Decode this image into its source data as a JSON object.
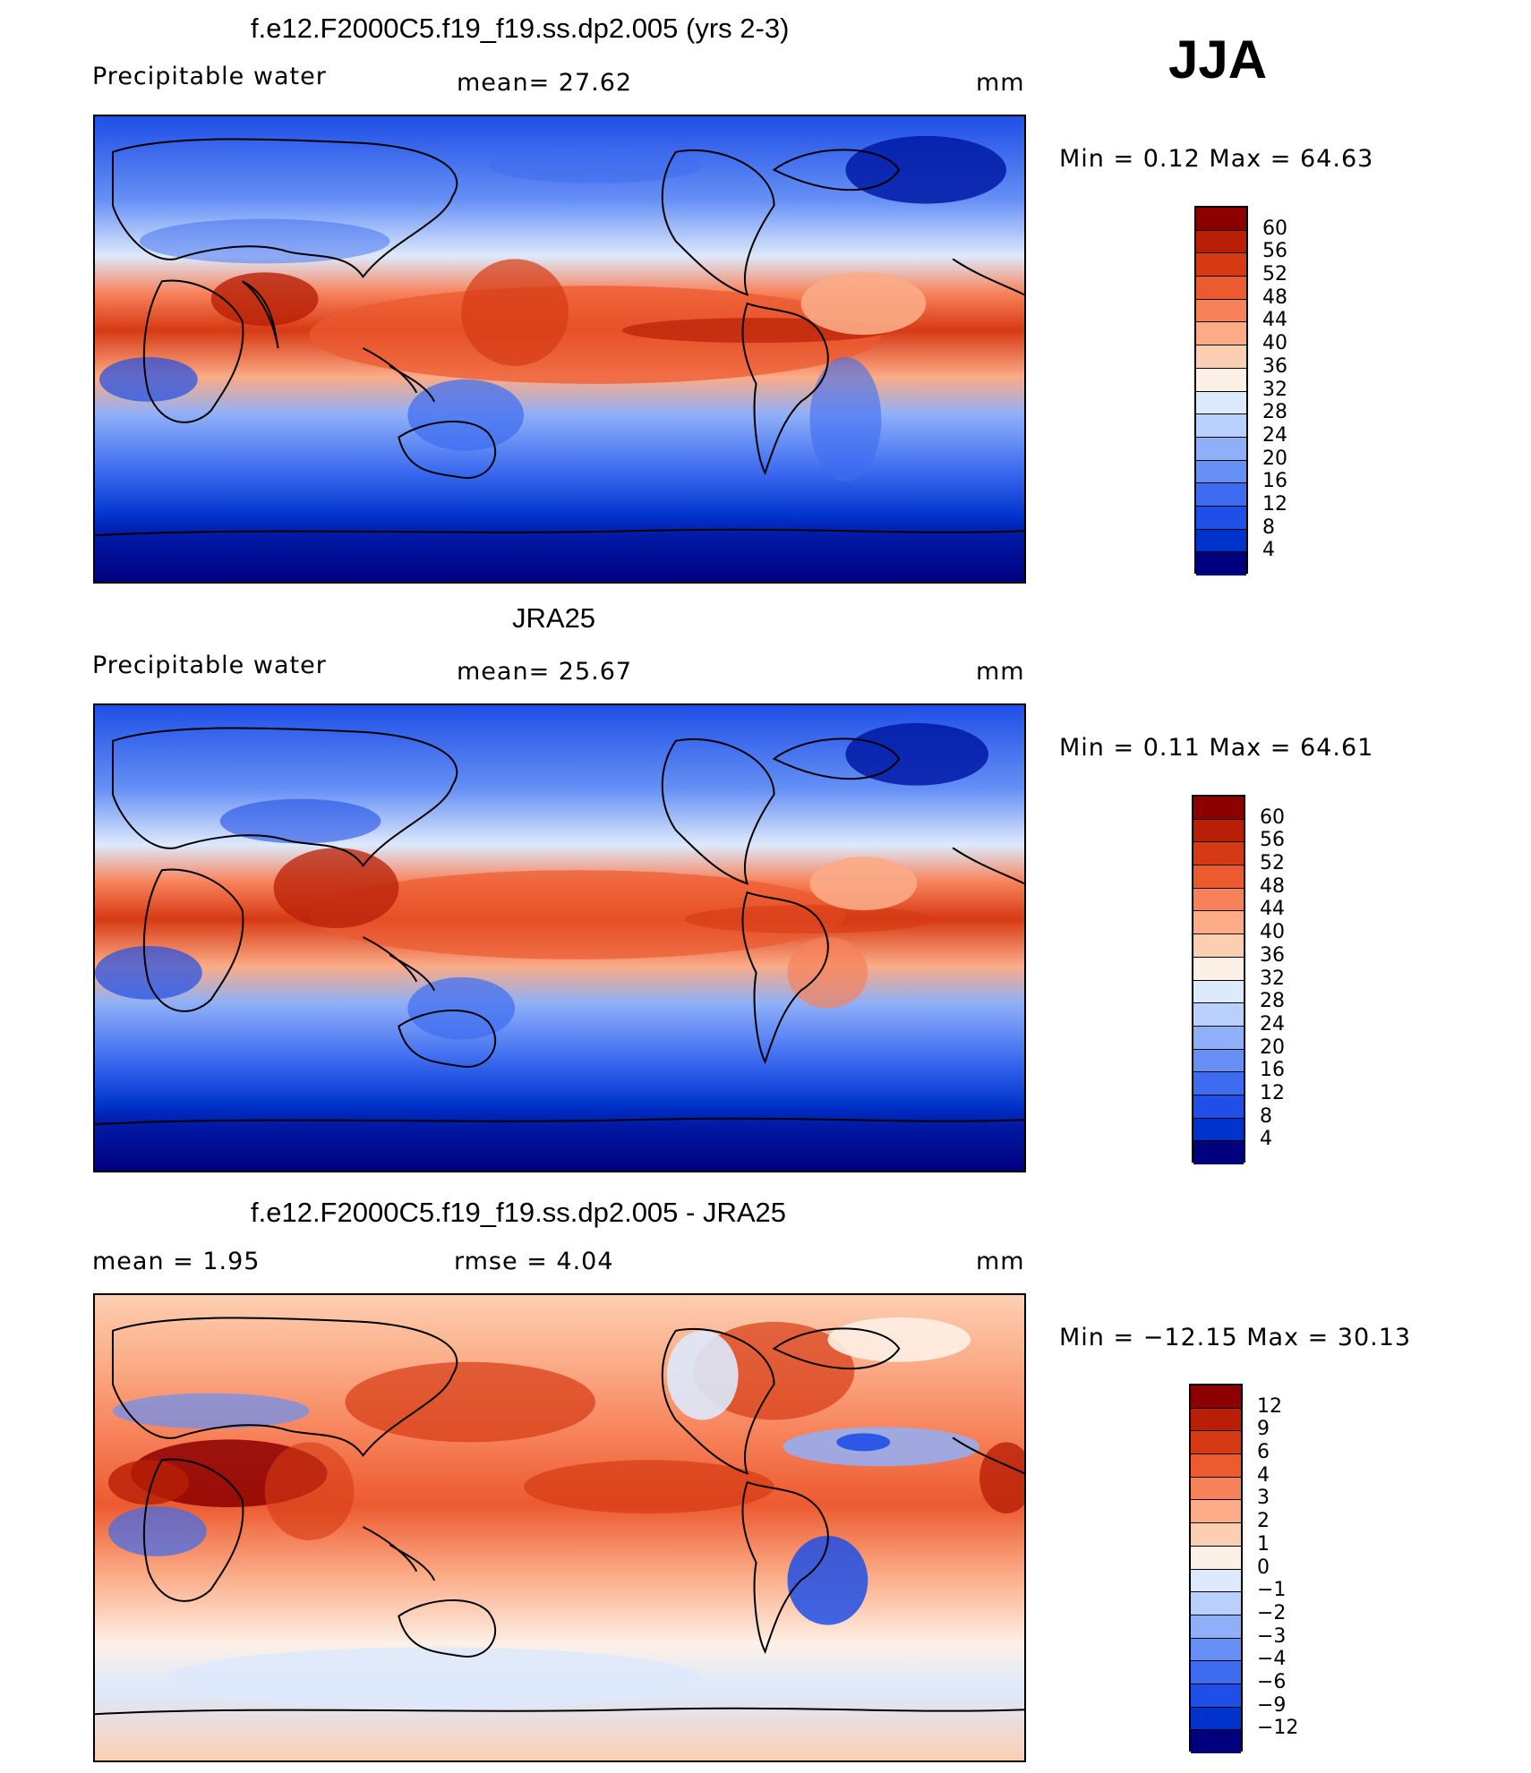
{
  "season": "JJA",
  "panels": [
    {
      "id": "model",
      "title": "f.e12.F2000C5.f19_f19.ss.dp2.005 (yrs 2-3)",
      "left_label": "Precipitable  water",
      "mid_label": "mean=   27.62",
      "units": "mm",
      "minmax": "Min  =     0.12  Max  =     64.63",
      "colorbar_ticks": [
        "60",
        "56",
        "52",
        "48",
        "44",
        "40",
        "36",
        "32",
        "28",
        "24",
        "20",
        "16",
        "12",
        "8",
        "4"
      ]
    },
    {
      "id": "obs",
      "title": "JRA25",
      "left_label": "Precipitable  water",
      "mid_label": "mean=   25.67",
      "units": "mm",
      "minmax": "Min  =     0.11  Max  =     64.61",
      "colorbar_ticks": [
        "60",
        "56",
        "52",
        "48",
        "44",
        "40",
        "36",
        "32",
        "28",
        "24",
        "20",
        "16",
        "12",
        "8",
        "4"
      ]
    },
    {
      "id": "diff",
      "title": "f.e12.F2000C5.f19_f19.ss.dp2.005 - JRA25",
      "left_label": "mean  =      1.95",
      "mid_label": "rmse  =     4.04",
      "units": "mm",
      "minmax": "Min  =  −12.15  Max  =     30.13",
      "colorbar_ticks": [
        "12",
        "9",
        "6",
        "4",
        "3",
        "2",
        "1",
        "0",
        "−1",
        "−2",
        "−3",
        "−4",
        "−6",
        "−9",
        "−12"
      ]
    }
  ],
  "colors": {
    "scale": [
      "#00007f",
      "#001aa6",
      "#0033cc",
      "#1f4fe6",
      "#3d6cf0",
      "#6690f5",
      "#8fb0f8",
      "#b8d0fb",
      "#dde9fc",
      "#fdf0e6",
      "#fccfb2",
      "#fbab86",
      "#f7825a",
      "#ec5a30",
      "#d63a14",
      "#b81f06",
      "#8c0000"
    ],
    "coast": "#000000",
    "frame": "#000000"
  }
}
